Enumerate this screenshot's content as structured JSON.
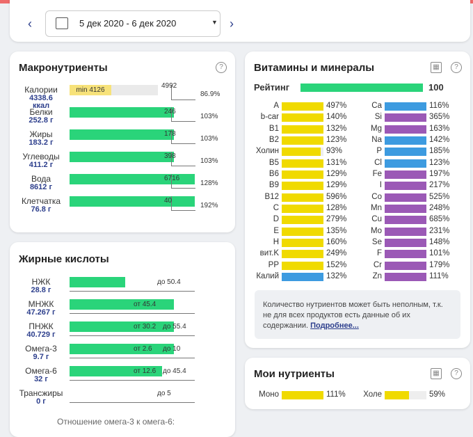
{
  "header": {
    "date_range": "5 дек 2020 - 6 дек 2020"
  },
  "macros": {
    "title": "Макронутриенты",
    "rows": [
      {
        "name": "Калории",
        "amount": "4338.6",
        "unit": "ккал",
        "min": "min 4126",
        "target": "4992",
        "percent": {
          "value": 86.9,
          "label": "86.9%"
        }
      },
      {
        "name": "Белки",
        "amount": "252.8 г",
        "target": "246",
        "percent": {
          "value": 103,
          "label": "103%"
        }
      },
      {
        "name": "Жиры",
        "amount": "183.2 г",
        "target": "178",
        "percent": {
          "value": 103,
          "label": "103%"
        }
      },
      {
        "name": "Углеводы",
        "amount": "411.2 г",
        "target": "398",
        "percent": {
          "value": 103,
          "label": "103%"
        }
      },
      {
        "name": "Вода",
        "amount": "8612 г",
        "target": "6716",
        "percent": {
          "value": 128,
          "label": "128%"
        }
      },
      {
        "name": "Клетчатка",
        "amount": "76.8 г",
        "target": "40",
        "percent": {
          "value": 192,
          "label": "192%"
        }
      }
    ]
  },
  "fatty": {
    "title": "Жирные кислоты",
    "rows": [
      {
        "name": "НЖК",
        "amount": "28.8 г",
        "to": "до 50.4"
      },
      {
        "name": "МНЖК",
        "amount": "47.267 г",
        "from": "от 45.4"
      },
      {
        "name": "ПНЖК",
        "amount": "40.729 г",
        "from": "от 30.2",
        "to": "до 55.4"
      },
      {
        "name": "Омега-3",
        "amount": "9.7 г",
        "from": "от 2.6",
        "to": "до 10"
      },
      {
        "name": "Омега-6",
        "amount": "32 г",
        "from": "от 12.6",
        "to": "до 45.4"
      },
      {
        "name": "Трансжиры",
        "amount": "0 г",
        "to": "до 5"
      }
    ],
    "footer": "Отношение омега-3 к омега-6:"
  },
  "vitamins": {
    "title": "Витамины и минералы",
    "rating_label": "Рейтинг",
    "rating": 100,
    "left": [
      {
        "name": "A",
        "percent": {
          "value": 497,
          "label": "497%"
        },
        "color": "#f0da00"
      },
      {
        "name": "b-car",
        "percent": {
          "value": 140,
          "label": "140%"
        },
        "color": "#f0da00"
      },
      {
        "name": "B1",
        "percent": {
          "value": 132,
          "label": "132%"
        },
        "color": "#f0da00"
      },
      {
        "name": "B2",
        "percent": {
          "value": 123,
          "label": "123%"
        },
        "color": "#f0da00"
      },
      {
        "name": "Холин",
        "percent": {
          "value": 93,
          "label": "93%"
        },
        "color": "#f0da00"
      },
      {
        "name": "B5",
        "percent": {
          "value": 131,
          "label": "131%"
        },
        "color": "#f0da00"
      },
      {
        "name": "B6",
        "percent": {
          "value": 129,
          "label": "129%"
        },
        "color": "#f0da00"
      },
      {
        "name": "B9",
        "percent": {
          "value": 129,
          "label": "129%"
        },
        "color": "#f0da00"
      },
      {
        "name": "B12",
        "percent": {
          "value": 596,
          "label": "596%"
        },
        "color": "#f0da00"
      },
      {
        "name": "C",
        "percent": {
          "value": 128,
          "label": "128%"
        },
        "color": "#f0da00"
      },
      {
        "name": "D",
        "percent": {
          "value": 279,
          "label": "279%"
        },
        "color": "#f0da00"
      },
      {
        "name": "E",
        "percent": {
          "value": 135,
          "label": "135%"
        },
        "color": "#f0da00"
      },
      {
        "name": "H",
        "percent": {
          "value": 160,
          "label": "160%"
        },
        "color": "#f0da00"
      },
      {
        "name": "вит.K",
        "percent": {
          "value": 249,
          "label": "249%"
        },
        "color": "#f0da00"
      },
      {
        "name": "PP",
        "percent": {
          "value": 152,
          "label": "152%"
        },
        "color": "#f0da00"
      },
      {
        "name": "Калий",
        "percent": {
          "value": 132,
          "label": "132%"
        },
        "color": "#3d9be0"
      }
    ],
    "right": [
      {
        "name": "Ca",
        "percent": {
          "value": 116,
          "label": "116%"
        },
        "color": "#3d9be0"
      },
      {
        "name": "Si",
        "percent": {
          "value": 365,
          "label": "365%"
        },
        "color": "#9b59b6"
      },
      {
        "name": "Mg",
        "percent": {
          "value": 163,
          "label": "163%"
        },
        "color": "#9b59b6"
      },
      {
        "name": "Na",
        "percent": {
          "value": 142,
          "label": "142%"
        },
        "color": "#3d9be0"
      },
      {
        "name": "P",
        "percent": {
          "value": 185,
          "label": "185%"
        },
        "color": "#3d9be0"
      },
      {
        "name": "Cl",
        "percent": {
          "value": 123,
          "label": "123%"
        },
        "color": "#3d9be0"
      },
      {
        "name": "Fe",
        "percent": {
          "value": 197,
          "label": "197%"
        },
        "color": "#9b59b6"
      },
      {
        "name": "I",
        "percent": {
          "value": 217,
          "label": "217%"
        },
        "color": "#9b59b6"
      },
      {
        "name": "Co",
        "percent": {
          "value": 525,
          "label": "525%"
        },
        "color": "#9b59b6"
      },
      {
        "name": "Mn",
        "percent": {
          "value": 248,
          "label": "248%"
        },
        "color": "#9b59b6"
      },
      {
        "name": "Cu",
        "percent": {
          "value": 685,
          "label": "685%"
        },
        "color": "#9b59b6"
      },
      {
        "name": "Mo",
        "percent": {
          "value": 231,
          "label": "231%"
        },
        "color": "#9b59b6"
      },
      {
        "name": "Se",
        "percent": {
          "value": 148,
          "label": "148%"
        },
        "color": "#9b59b6"
      },
      {
        "name": "F",
        "percent": {
          "value": 101,
          "label": "101%"
        },
        "color": "#9b59b6"
      },
      {
        "name": "Cr",
        "percent": {
          "value": 179,
          "label": "179%"
        },
        "color": "#9b59b6"
      },
      {
        "name": "Zn",
        "percent": {
          "value": 111,
          "label": "111%"
        },
        "color": "#9b59b6"
      }
    ],
    "note": "Количество нутриентов может быть неполным, т.к. не для всех продуктов есть данные об их содержании.",
    "note_link": "Подробнее..."
  },
  "my_nutrients": {
    "title": "Мои нутриенты",
    "items": [
      {
        "name": "Моно",
        "percent": {
          "value": 111,
          "label": "111%"
        },
        "color": "#f0da00"
      },
      {
        "name": "Холе",
        "percent": {
          "value": 59,
          "label": "59%"
        },
        "color": "#f0da00"
      }
    ]
  }
}
